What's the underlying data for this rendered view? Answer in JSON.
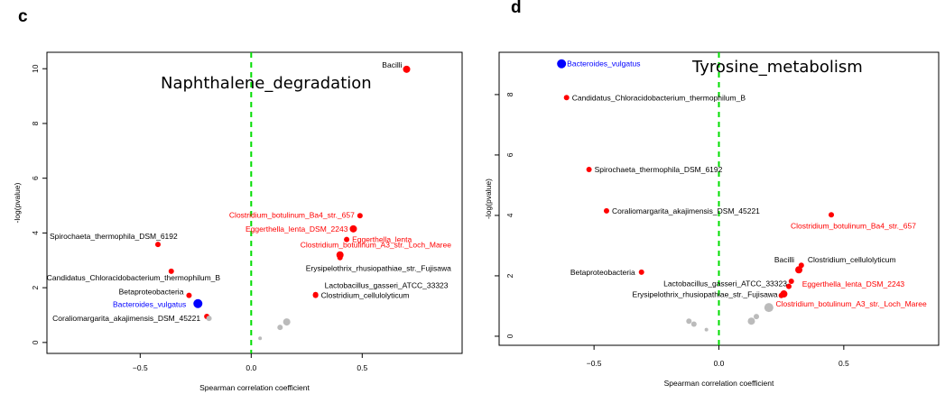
{
  "colors": {
    "red": "#ff0000",
    "darkred": "#e00000",
    "blue": "#0000ff",
    "grey": "#bbbbbb",
    "zero_line": "#00dd00"
  },
  "chart_data": [
    {
      "panel": "c",
      "type": "scatter",
      "title": "Naphthalene_degradation",
      "xlabel": "Spearman correlation coefficient",
      "ylabel": "-log(pvalue)",
      "xlim": [
        -0.92,
        0.95
      ],
      "ylim": [
        -0.4,
        10.6
      ],
      "xticks": [
        -0.5,
        0.0,
        0.5
      ],
      "xtick_labels": [
        "−0.5",
        "0.0",
        "0.5"
      ],
      "yticks": [
        0,
        2,
        4,
        6,
        8,
        10
      ],
      "ytick_labels": [
        "0",
        "2",
        "4",
        "6",
        "8",
        "10"
      ],
      "zero_line": "dashed vertical at x = 0",
      "points": [
        {
          "x": 0.7,
          "y": 9.98,
          "label": "Bacilli",
          "group": "black",
          "size": 4
        },
        {
          "x": 0.49,
          "y": 4.63,
          "label": "Clostridium_botulinum_Ba4_str._657",
          "group": "red",
          "size": 3
        },
        {
          "x": 0.46,
          "y": 4.15,
          "label": "Eggerthella_lenta_DSM_2243",
          "group": "red",
          "size": 4
        },
        {
          "x": 0.43,
          "y": 3.76,
          "label": "Eggerthella_lenta",
          "group": "red",
          "size": 3
        },
        {
          "x": 0.4,
          "y": 3.2,
          "label": "Clostridium_botulinum_A3_str._Loch_Maree",
          "group": "red",
          "size": 4
        },
        {
          "x": 0.4,
          "y": 3.1,
          "label": "Erysipelothrix_rhusiopathiae_str._Fujisawa",
          "group": "black",
          "size": 3
        },
        {
          "x": 0.29,
          "y": 1.75,
          "label": "Lactobacillus_gasseri_ATCC_33323",
          "group": "black",
          "size": 3
        },
        {
          "x": 0.29,
          "y": 1.72,
          "label": "Clostridium_cellulolyticum",
          "group": "black",
          "size": 3
        },
        {
          "x": -0.42,
          "y": 3.58,
          "label": "Spirochaeta_thermophila_DSM_6192",
          "group": "black",
          "size": 3
        },
        {
          "x": -0.36,
          "y": 2.6,
          "label": "Candidatus_Chloracidobacterium_thermophilum_B",
          "group": "black",
          "size": 3
        },
        {
          "x": -0.28,
          "y": 1.72,
          "label": "Betaproteobacteria",
          "group": "black",
          "size": 3
        },
        {
          "x": -0.24,
          "y": 1.42,
          "label": "Bacteroides_vulgatus",
          "group": "blue",
          "size": 5
        },
        {
          "x": -0.2,
          "y": 0.95,
          "label": "Coraliomargarita_akajimensis_DSM_45221",
          "group": "black",
          "size": 3
        },
        {
          "x": -0.19,
          "y": 0.88,
          "label": "",
          "group": "grey",
          "size": 3
        },
        {
          "x": 0.04,
          "y": 0.15,
          "label": "",
          "group": "grey",
          "size": 2
        },
        {
          "x": 0.13,
          "y": 0.55,
          "label": "",
          "group": "grey",
          "size": 3
        },
        {
          "x": 0.16,
          "y": 0.75,
          "label": "",
          "group": "grey",
          "size": 4
        }
      ]
    },
    {
      "panel": "d",
      "type": "scatter",
      "title": "Tyrosine_metabolism",
      "xlabel": "Spearman correlation coefficient",
      "ylabel": "-log(pvalue)",
      "xlim": [
        -0.88,
        0.88
      ],
      "ylim": [
        -0.3,
        9.4
      ],
      "xticks": [
        -0.5,
        0.0,
        0.5
      ],
      "xtick_labels": [
        "−0.5",
        "0.0",
        "0.5"
      ],
      "yticks": [
        0,
        2,
        4,
        6,
        8
      ],
      "ytick_labels": [
        "0",
        "2",
        "4",
        "6",
        "8"
      ],
      "zero_line": "dashed vertical at x = 0",
      "points": [
        {
          "x": -0.63,
          "y": 9.02,
          "label": "Bacteroides_vulgatus",
          "group": "blue",
          "size": 5
        },
        {
          "x": -0.61,
          "y": 7.9,
          "label": "Candidatus_Chloracidobacterium_thermophilum_B",
          "group": "black",
          "size": 3
        },
        {
          "x": -0.52,
          "y": 5.52,
          "label": "Spirochaeta_thermophila_DSM_6192",
          "group": "black",
          "size": 3
        },
        {
          "x": -0.45,
          "y": 4.15,
          "label": "Coraliomargarita_akajimensis_DSM_45221",
          "group": "black",
          "size": 3
        },
        {
          "x": -0.31,
          "y": 2.12,
          "label": "Betaproteobacteria",
          "group": "black",
          "size": 3
        },
        {
          "x": 0.45,
          "y": 4.02,
          "label": "Clostridium_botulinum_Ba4_str._657",
          "group": "red",
          "size": 3
        },
        {
          "x": 0.33,
          "y": 2.35,
          "label": "Clostridium_cellulolyticum",
          "group": "black",
          "size": 3
        },
        {
          "x": 0.32,
          "y": 2.2,
          "label": "Bacilli",
          "group": "black",
          "size": 4
        },
        {
          "x": 0.29,
          "y": 1.82,
          "label": "Eggerthella_lenta_DSM_2243",
          "group": "red",
          "size": 3
        },
        {
          "x": 0.28,
          "y": 1.65,
          "label": "Lactobacillus_gasseri_ATCC_33323",
          "group": "black",
          "size": 3
        },
        {
          "x": 0.26,
          "y": 1.4,
          "label": "Clostridium_botulinum_A3_str._Loch_Maree",
          "group": "red",
          "size": 4
        },
        {
          "x": 0.25,
          "y": 1.35,
          "label": "Erysipelothrix_rhusiopathiae_str._Fujisawa",
          "group": "black",
          "size": 3
        },
        {
          "x": 0.2,
          "y": 0.95,
          "label": "",
          "group": "grey",
          "size": 5
        },
        {
          "x": 0.15,
          "y": 0.65,
          "label": "",
          "group": "grey",
          "size": 3
        },
        {
          "x": 0.13,
          "y": 0.5,
          "label": "",
          "group": "grey",
          "size": 4
        },
        {
          "x": -0.12,
          "y": 0.5,
          "label": "",
          "group": "grey",
          "size": 3
        },
        {
          "x": -0.1,
          "y": 0.4,
          "label": "",
          "group": "grey",
          "size": 3
        },
        {
          "x": -0.05,
          "y": 0.22,
          "label": "",
          "group": "grey",
          "size": 2
        }
      ]
    }
  ]
}
